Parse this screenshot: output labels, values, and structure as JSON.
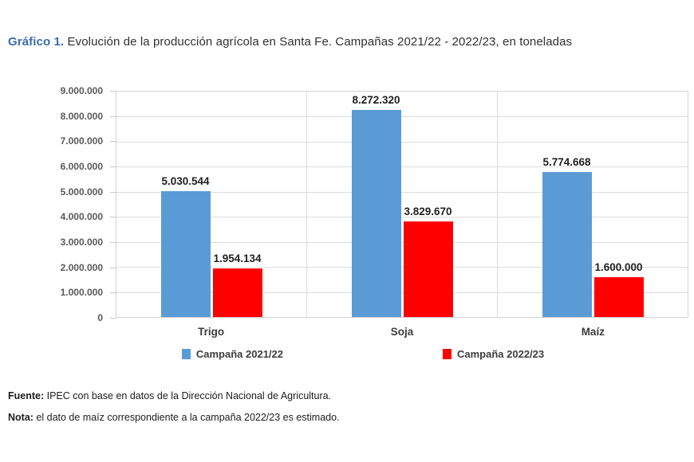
{
  "title": {
    "prefix": "Gráfico 1.",
    "text": "Evolución de la producción agrícola en Santa Fe. Campañas 2021/22 - 2022/23, en toneladas"
  },
  "chart_data": {
    "type": "bar",
    "title": "Gráfico 1. Evolución de la producción agrícola en Santa Fe. Campañas 2021/22 - 2022/23, en toneladas",
    "categories": [
      "Trigo",
      "Soja",
      "Maíz"
    ],
    "series": [
      {
        "name": "Campaña 2021/22",
        "color": "#5B9BD5",
        "values": [
          5030544,
          8272320,
          5774668
        ],
        "labels": [
          "5.030.544",
          "8.272.320",
          "5.774.668"
        ]
      },
      {
        "name": "Campaña 2022/23",
        "color": "#FE0000",
        "values": [
          1954134,
          3829670,
          1600000
        ],
        "labels": [
          "1.954.134",
          "3.829.670",
          "1.600.000"
        ]
      }
    ],
    "xlabel": "",
    "ylabel": "",
    "ylim": [
      0,
      9000000
    ],
    "y_ticks": [
      "9.000.000",
      "8.000.000",
      "7.000.000",
      "6.000.000",
      "5.000.000",
      "4.000.000",
      "3.000.000",
      "2.000.000",
      "1.000.000",
      "0"
    ],
    "grid": true,
    "legend_position": "bottom"
  },
  "footer": {
    "fuente_label": "Fuente:",
    "fuente_text": " IPEC con base en datos de la Dirección Nacional de Agricultura.",
    "nota_label": "Nota:",
    "nota_text": " el dato de maíz correspondiente a la campaña 2022/23 es estimado."
  }
}
